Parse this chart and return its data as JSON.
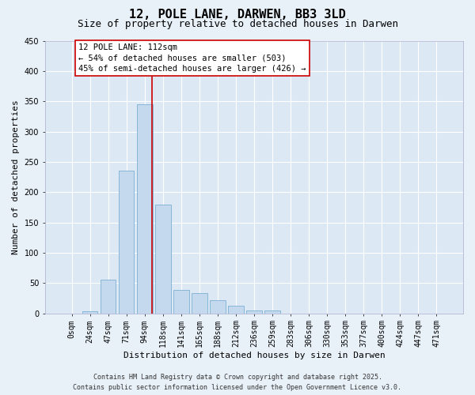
{
  "title_line1": "12, POLE LANE, DARWEN, BB3 3LD",
  "title_line2": "Size of property relative to detached houses in Darwen",
  "xlabel": "Distribution of detached houses by size in Darwen",
  "ylabel": "Number of detached properties",
  "bar_color": "#c5d9ee",
  "bar_edge_color": "#7aafd4",
  "plot_bg_color": "#dce9f5",
  "fig_bg_color": "#e8f0f8",
  "grid_color": "#ffffff",
  "categories": [
    "0sqm",
    "24sqm",
    "47sqm",
    "71sqm",
    "94sqm",
    "118sqm",
    "141sqm",
    "165sqm",
    "188sqm",
    "212sqm",
    "236sqm",
    "259sqm",
    "283sqm",
    "306sqm",
    "330sqm",
    "353sqm",
    "377sqm",
    "400sqm",
    "424sqm",
    "447sqm",
    "471sqm"
  ],
  "values": [
    0,
    3,
    55,
    235,
    345,
    180,
    38,
    33,
    22,
    13,
    5,
    5,
    0,
    0,
    0,
    0,
    0,
    0,
    0,
    0,
    0
  ],
  "ylim": [
    0,
    450
  ],
  "yticks": [
    0,
    50,
    100,
    150,
    200,
    250,
    300,
    350,
    400,
    450
  ],
  "vline_color": "#cc0000",
  "vline_x": 4.42,
  "annotation_text": "12 POLE LANE: 112sqm\n← 54% of detached houses are smaller (503)\n45% of semi-detached houses are larger (426) →",
  "annotation_box_fc": "#ffffff",
  "annotation_box_ec": "#cc0000",
  "footer": "Contains HM Land Registry data © Crown copyright and database right 2025.\nContains public sector information licensed under the Open Government Licence v3.0.",
  "title_fs": 11,
  "subtitle_fs": 9,
  "ylabel_fs": 8,
  "xlabel_fs": 8,
  "tick_fs": 7,
  "ann_fs": 7.5,
  "footer_fs": 6
}
